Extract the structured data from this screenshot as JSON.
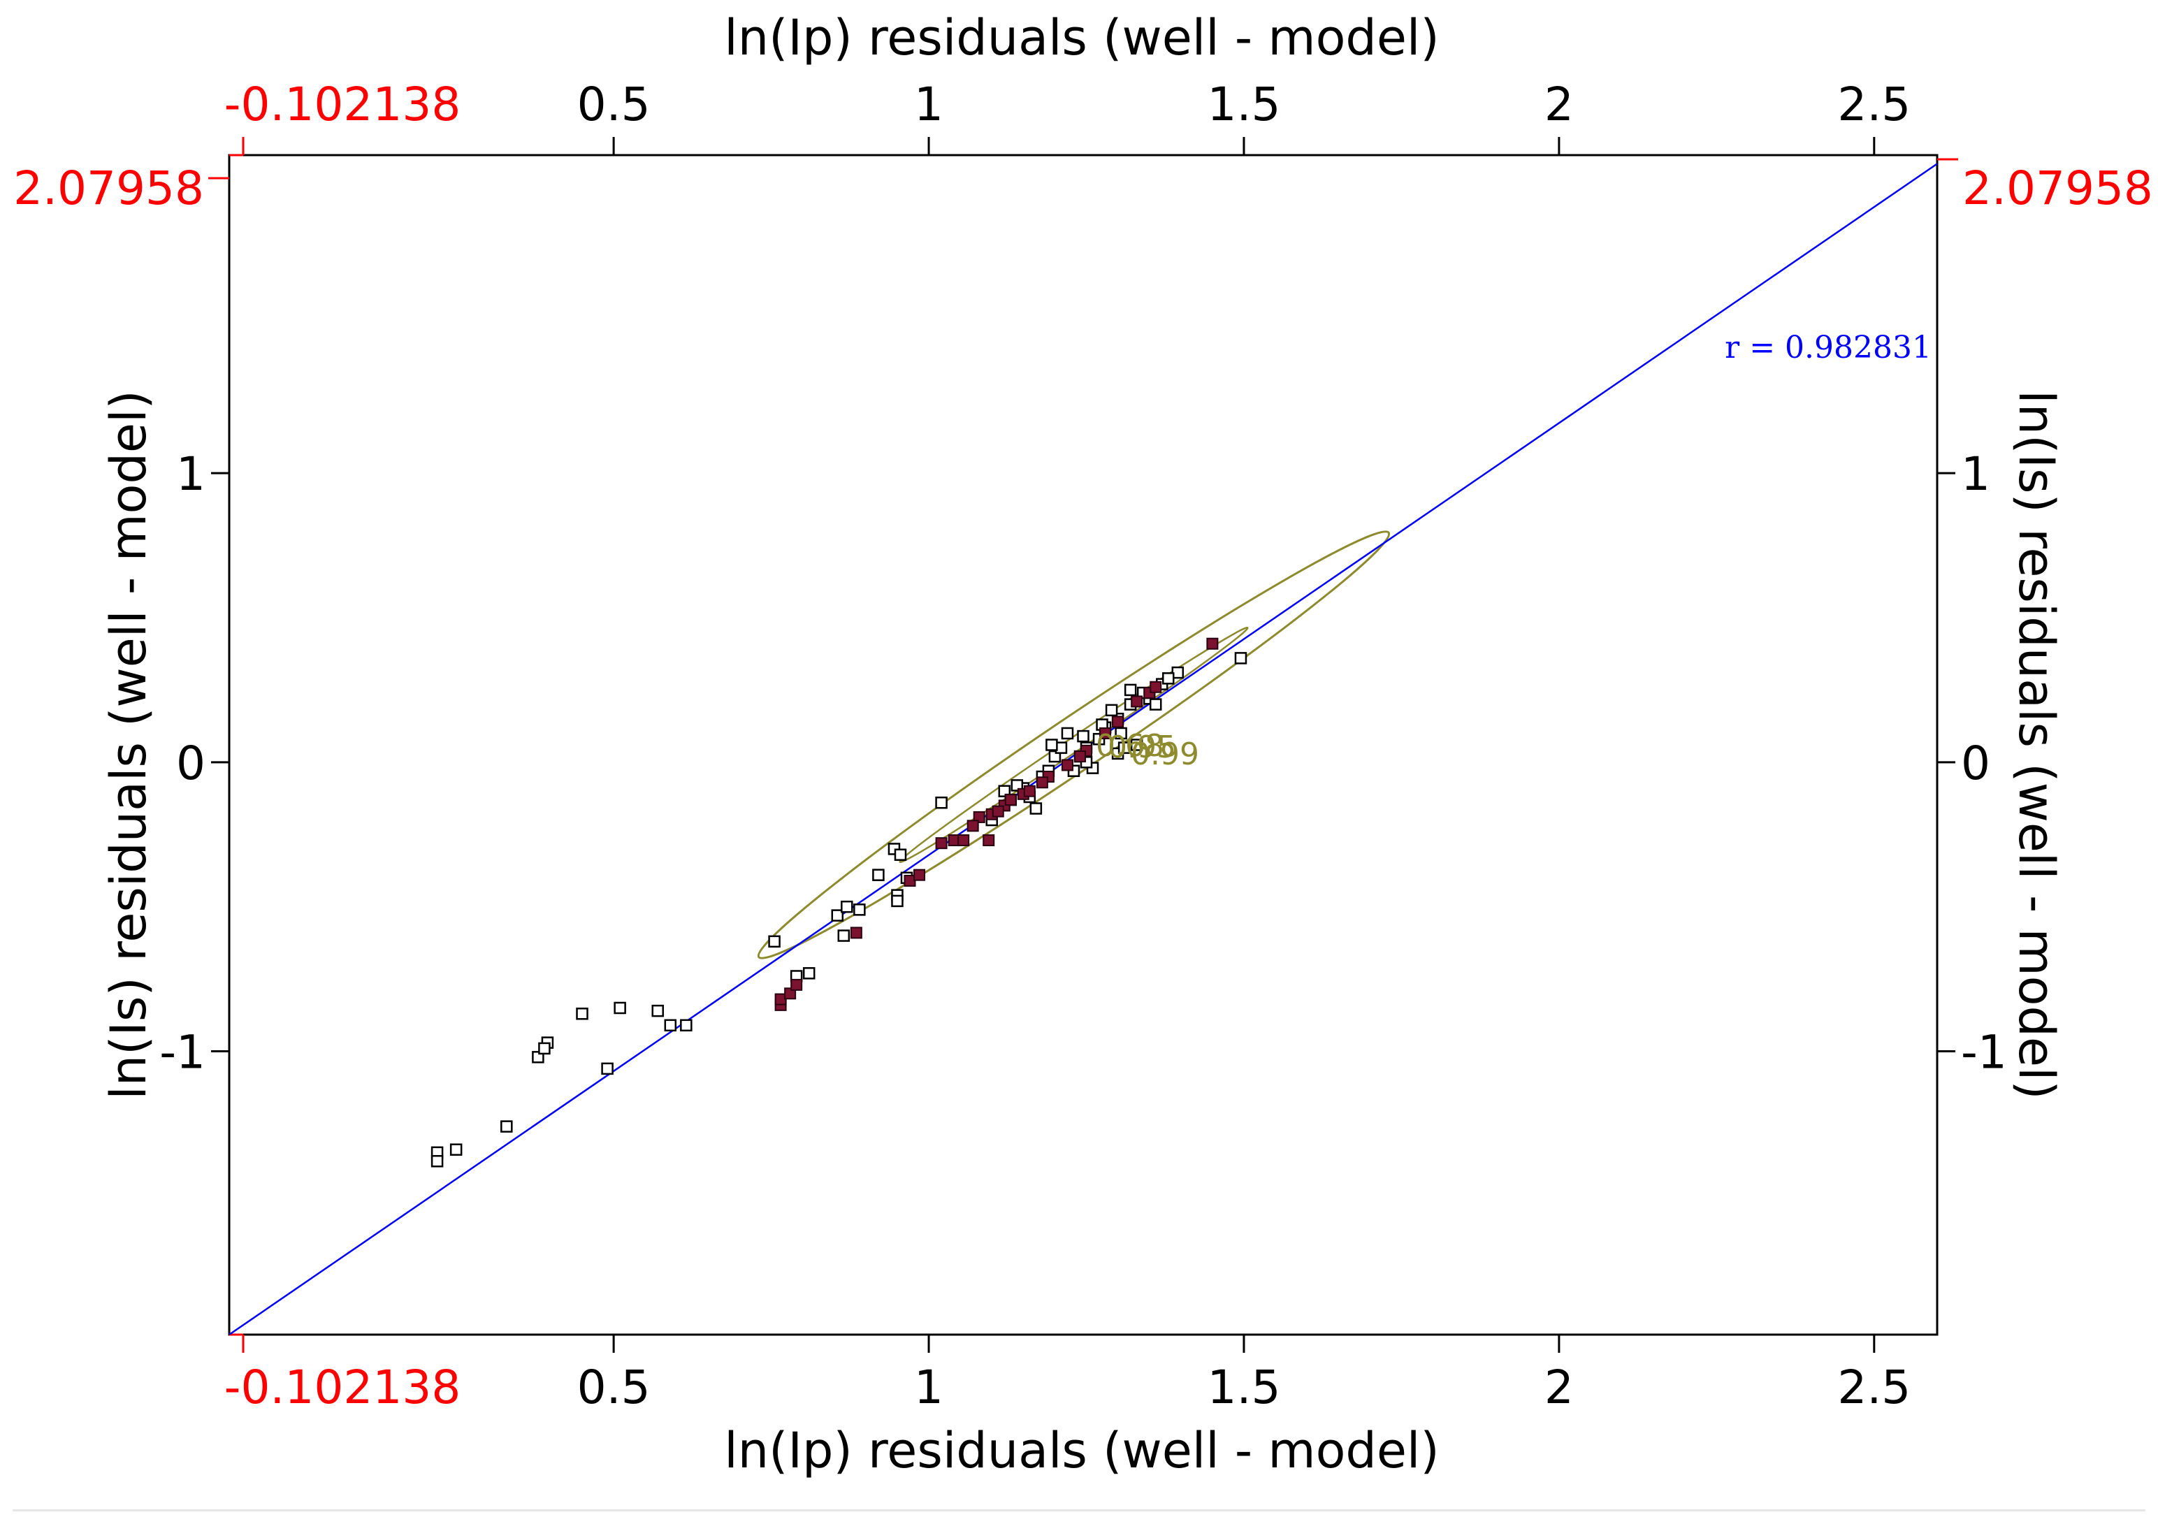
{
  "chart_data": {
    "type": "scatter",
    "title": "",
    "xlabel": "ln(Ip) residuals (well - model)",
    "ylabel": "ln(Is) residuals (well - model)",
    "xlim": [
      -0.11,
      2.6
    ],
    "ylim": [
      -1.98,
      2.1
    ],
    "x_ticks": [
      0.5,
      1,
      1.5,
      2,
      2.5
    ],
    "x_tick_labels": [
      "0.5",
      "1",
      "1.5",
      "2",
      "2.5"
    ],
    "y_ticks": [
      -1,
      0,
      1
    ],
    "y_tick_labels": [
      "-1",
      "0",
      "1"
    ],
    "x_min_marker": {
      "value": -0.102138,
      "label": "-0.102138"
    },
    "y_max_marker": {
      "value": 2.07958,
      "label": "2.07958"
    },
    "regression": {
      "x1": -0.11,
      "y1": -1.98,
      "x2": 2.6,
      "y2": 2.07,
      "label": "r = 0.982831"
    },
    "ellipse_labels": [
      "0.99",
      "0.95",
      "0.68"
    ],
    "series": [
      {
        "name": "open",
        "marker": "open-square",
        "points": [
          [
            0.22,
            -1.35
          ],
          [
            0.22,
            -1.38
          ],
          [
            0.25,
            -1.34
          ],
          [
            0.33,
            -1.26
          ],
          [
            0.38,
            -1.02
          ],
          [
            0.395,
            -0.97
          ],
          [
            0.39,
            -0.99
          ],
          [
            0.45,
            -0.87
          ],
          [
            0.49,
            -1.06
          ],
          [
            0.51,
            -0.85
          ],
          [
            0.57,
            -0.86
          ],
          [
            0.59,
            -0.91
          ],
          [
            0.615,
            -0.91
          ],
          [
            0.79,
            -0.74
          ],
          [
            0.81,
            -0.73
          ],
          [
            0.755,
            -0.62
          ],
          [
            0.855,
            -0.53
          ],
          [
            0.87,
            -0.5
          ],
          [
            0.89,
            -0.51
          ],
          [
            0.865,
            -0.6
          ],
          [
            0.92,
            -0.39
          ],
          [
            0.945,
            -0.3
          ],
          [
            0.955,
            -0.32
          ],
          [
            0.95,
            -0.46
          ],
          [
            0.95,
            -0.48
          ],
          [
            0.965,
            -0.4
          ],
          [
            1.02,
            -0.14
          ],
          [
            1.1,
            -0.2
          ],
          [
            1.12,
            -0.1
          ],
          [
            1.15,
            -0.09
          ],
          [
            1.18,
            -0.05
          ],
          [
            1.2,
            0.02
          ],
          [
            1.23,
            -0.03
          ],
          [
            1.25,
            0.05
          ],
          [
            1.27,
            0.08
          ],
          [
            1.28,
            0.12
          ],
          [
            1.3,
            0.15
          ],
          [
            1.32,
            0.2
          ],
          [
            1.35,
            0.22
          ],
          [
            1.37,
            0.27
          ],
          [
            1.395,
            0.31
          ],
          [
            1.495,
            0.36
          ],
          [
            1.3,
            0.03
          ],
          [
            1.31,
            0.05
          ],
          [
            1.33,
            0.06
          ],
          [
            1.24,
            0.02
          ],
          [
            1.26,
            -0.02
          ],
          [
            1.22,
            0.1
          ],
          [
            1.19,
            -0.03
          ],
          [
            1.16,
            -0.12
          ],
          [
            1.14,
            -0.08
          ],
          [
            1.13,
            -0.13
          ],
          [
            1.21,
            0.05
          ],
          [
            1.29,
            0.18
          ],
          [
            1.34,
            0.24
          ],
          [
            1.36,
            0.2
          ],
          [
            1.38,
            0.29
          ],
          [
            1.245,
            0.09
          ],
          [
            1.275,
            0.13
          ],
          [
            1.305,
            0.1
          ],
          [
            1.25,
            0.0
          ],
          [
            1.195,
            0.06
          ],
          [
            1.17,
            -0.16
          ],
          [
            1.32,
            0.25
          ]
        ]
      },
      {
        "name": "filled",
        "marker": "filled-square",
        "points": [
          [
            0.765,
            -0.84
          ],
          [
            0.765,
            -0.82
          ],
          [
            0.78,
            -0.8
          ],
          [
            0.79,
            -0.77
          ],
          [
            0.885,
            -0.59
          ],
          [
            0.97,
            -0.41
          ],
          [
            0.985,
            -0.39
          ],
          [
            1.02,
            -0.28
          ],
          [
            1.04,
            -0.27
          ],
          [
            1.055,
            -0.27
          ],
          [
            1.08,
            -0.19
          ],
          [
            1.095,
            -0.27
          ],
          [
            1.1,
            -0.18
          ],
          [
            1.12,
            -0.15
          ],
          [
            1.13,
            -0.13
          ],
          [
            1.15,
            -0.11
          ],
          [
            1.16,
            -0.1
          ],
          [
            1.19,
            -0.05
          ],
          [
            1.22,
            -0.01
          ],
          [
            1.25,
            0.04
          ],
          [
            1.28,
            0.1
          ],
          [
            1.3,
            0.14
          ],
          [
            1.33,
            0.21
          ],
          [
            1.35,
            0.24
          ],
          [
            1.45,
            0.41
          ],
          [
            1.07,
            -0.22
          ],
          [
            1.11,
            -0.17
          ],
          [
            1.18,
            -0.07
          ],
          [
            1.24,
            0.02
          ],
          [
            1.36,
            0.26
          ]
        ]
      }
    ]
  },
  "colors": {
    "axis": "#000000",
    "axis_marker": "#ff0000",
    "regression": "#0000ff",
    "ellipse": "#8e8b2e",
    "filled_marker": "#7a1230",
    "open_marker_fill": "#ffffff"
  }
}
